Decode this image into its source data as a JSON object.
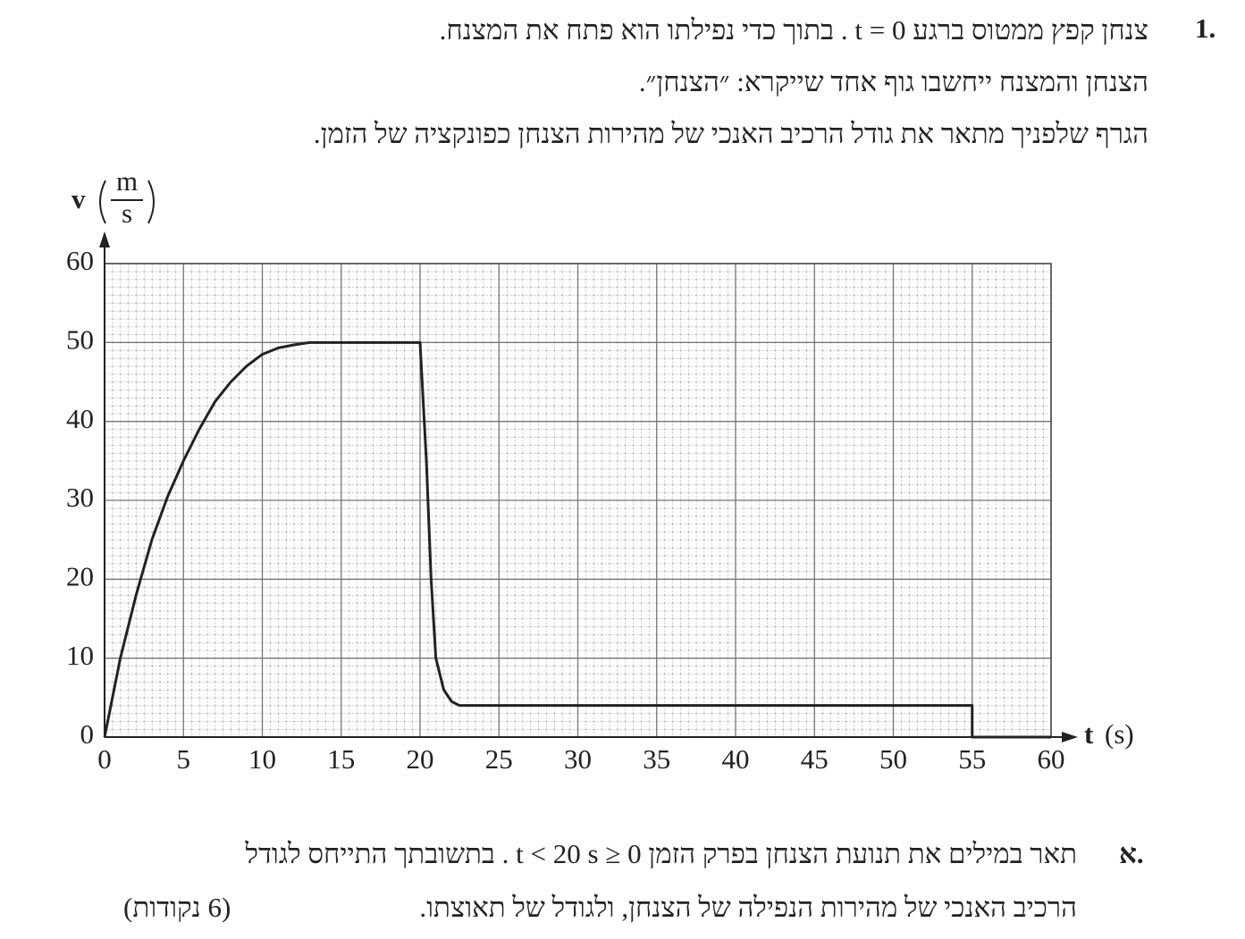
{
  "question": {
    "number": "1.",
    "lines": [
      "צנחן קפץ ממטוס ברגע  t = 0 . בתוך כדי נפילתו הוא פתח את המצנח.",
      "הצנחן והמצנח ייחשבו גוף אחד שייקרא: ״הצנחן״.",
      "הגרף שלפניך מתאר את גודל הרכיב האנכי של מהירות הצנחן כפונקציה של הזמן."
    ]
  },
  "chart_data": {
    "type": "line",
    "y_label_symbol": "v",
    "y_label_unit_numerator": "m",
    "y_label_unit_denominator": "s",
    "x_label_symbol": "t",
    "x_label_unit": "(s)",
    "x": [
      0,
      1,
      2,
      3,
      4,
      5,
      6,
      7,
      8,
      9,
      10,
      11,
      12,
      13,
      14,
      20,
      20.4,
      20.7,
      21,
      21.5,
      22,
      22.5,
      55,
      55,
      60
    ],
    "values": [
      0,
      10,
      18,
      25,
      30.5,
      35,
      39,
      42.5,
      45,
      47,
      48.5,
      49.3,
      49.7,
      50,
      50,
      50,
      35,
      20,
      10,
      6,
      4.5,
      4,
      4,
      0,
      0
    ],
    "color": "#222222",
    "xlim": [
      0,
      60
    ],
    "ylim": [
      0,
      60
    ],
    "xticks": [
      0,
      5,
      10,
      15,
      20,
      25,
      30,
      35,
      40,
      45,
      50,
      55,
      60
    ],
    "yticks": [
      0,
      10,
      20,
      30,
      40,
      50,
      60
    ],
    "grid": true
  },
  "part": {
    "label": "א.",
    "lines": [
      "תאר במילים את תנועת הצנחן בפרק הזמן  0 ≤ t < 20 s . בתשובתך התייחס לגודל",
      "הרכיב האנכי של מהירות הנפילה של הצנחן, ולגודל של תאוצתו."
    ],
    "points": "(6 נקודות)"
  }
}
